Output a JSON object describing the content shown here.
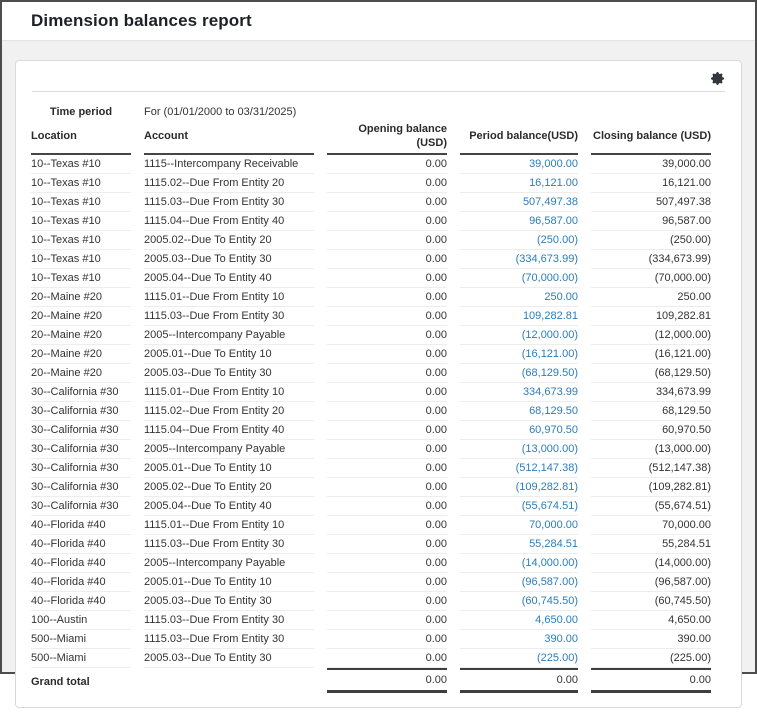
{
  "page": {
    "title": "Dimension balances report"
  },
  "toolbar": {
    "settings_icon": "gear-icon"
  },
  "report": {
    "time_period_label": "Time period",
    "time_period_value": "For (01/01/2000 to 03/31/2025)",
    "columns": {
      "location": "Location",
      "account": "Account",
      "opening": "Opening balance (USD)",
      "period": "Period balance(USD)",
      "closing": "Closing balance (USD)"
    },
    "rows": [
      {
        "location": "10--Texas #10",
        "account": "1115--Intercompany Receivable",
        "opening": "0.00",
        "period": "39,000.00",
        "closing": "39,000.00"
      },
      {
        "location": "10--Texas #10",
        "account": "1115.02--Due From Entity 20",
        "opening": "0.00",
        "period": "16,121.00",
        "closing": "16,121.00"
      },
      {
        "location": "10--Texas #10",
        "account": "1115.03--Due From Entity 30",
        "opening": "0.00",
        "period": "507,497.38",
        "closing": "507,497.38"
      },
      {
        "location": "10--Texas #10",
        "account": "1115.04--Due From Entity 40",
        "opening": "0.00",
        "period": "96,587.00",
        "closing": "96,587.00"
      },
      {
        "location": "10--Texas #10",
        "account": "2005.02--Due To Entity 20",
        "opening": "0.00",
        "period": "(250.00)",
        "closing": "(250.00)"
      },
      {
        "location": "10--Texas #10",
        "account": "2005.03--Due To Entity 30",
        "opening": "0.00",
        "period": "(334,673.99)",
        "closing": "(334,673.99)"
      },
      {
        "location": "10--Texas #10",
        "account": "2005.04--Due To Entity 40",
        "opening": "0.00",
        "period": "(70,000.00)",
        "closing": "(70,000.00)"
      },
      {
        "location": "20--Maine #20",
        "account": "1115.01--Due From Entity 10",
        "opening": "0.00",
        "period": "250.00",
        "closing": "250.00"
      },
      {
        "location": "20--Maine #20",
        "account": "1115.03--Due From Entity 30",
        "opening": "0.00",
        "period": "109,282.81",
        "closing": "109,282.81"
      },
      {
        "location": "20--Maine #20",
        "account": "2005--Intercompany Payable",
        "opening": "0.00",
        "period": "(12,000.00)",
        "closing": "(12,000.00)"
      },
      {
        "location": "20--Maine #20",
        "account": "2005.01--Due To Entity 10",
        "opening": "0.00",
        "period": "(16,121.00)",
        "closing": "(16,121.00)"
      },
      {
        "location": "20--Maine #20",
        "account": "2005.03--Due To Entity 30",
        "opening": "0.00",
        "period": "(68,129.50)",
        "closing": "(68,129.50)"
      },
      {
        "location": "30--California #30",
        "account": "1115.01--Due From Entity 10",
        "opening": "0.00",
        "period": "334,673.99",
        "closing": "334,673.99"
      },
      {
        "location": "30--California #30",
        "account": "1115.02--Due From Entity 20",
        "opening": "0.00",
        "period": "68,129.50",
        "closing": "68,129.50"
      },
      {
        "location": "30--California #30",
        "account": "1115.04--Due From Entity 40",
        "opening": "0.00",
        "period": "60,970.50",
        "closing": "60,970.50"
      },
      {
        "location": "30--California #30",
        "account": "2005--Intercompany Payable",
        "opening": "0.00",
        "period": "(13,000.00)",
        "closing": "(13,000.00)"
      },
      {
        "location": "30--California #30",
        "account": "2005.01--Due To Entity 10",
        "opening": "0.00",
        "period": "(512,147.38)",
        "closing": "(512,147.38)"
      },
      {
        "location": "30--California #30",
        "account": "2005.02--Due To Entity 20",
        "opening": "0.00",
        "period": "(109,282.81)",
        "closing": "(109,282.81)"
      },
      {
        "location": "30--California #30",
        "account": "2005.04--Due To Entity 40",
        "opening": "0.00",
        "period": "(55,674.51)",
        "closing": "(55,674.51)"
      },
      {
        "location": "40--Florida #40",
        "account": "1115.01--Due From Entity 10",
        "opening": "0.00",
        "period": "70,000.00",
        "closing": "70,000.00"
      },
      {
        "location": "40--Florida #40",
        "account": "1115.03--Due From Entity 30",
        "opening": "0.00",
        "period": "55,284.51",
        "closing": "55,284.51"
      },
      {
        "location": "40--Florida #40",
        "account": "2005--Intercompany Payable",
        "opening": "0.00",
        "period": "(14,000.00)",
        "closing": "(14,000.00)"
      },
      {
        "location": "40--Florida #40",
        "account": "2005.01--Due To Entity 10",
        "opening": "0.00",
        "period": "(96,587.00)",
        "closing": "(96,587.00)"
      },
      {
        "location": "40--Florida #40",
        "account": "2005.03--Due To Entity 30",
        "opening": "0.00",
        "period": "(60,745.50)",
        "closing": "(60,745.50)"
      },
      {
        "location": "100--Austin",
        "account": "1115.03--Due From Entity 30",
        "opening": "0.00",
        "period": "4,650.00",
        "closing": "4,650.00"
      },
      {
        "location": "500--Miami",
        "account": "1115.03--Due From Entity 30",
        "opening": "0.00",
        "period": "390.00",
        "closing": "390.00"
      },
      {
        "location": "500--Miami",
        "account": "2005.03--Due To Entity 30",
        "opening": "0.00",
        "period": "(225.00)",
        "closing": "(225.00)"
      }
    ],
    "grand_total": {
      "label": "Grand total",
      "opening": "0.00",
      "period": "0.00",
      "closing": "0.00"
    },
    "colors": {
      "link_blue": "#2c7dbb"
    }
  }
}
